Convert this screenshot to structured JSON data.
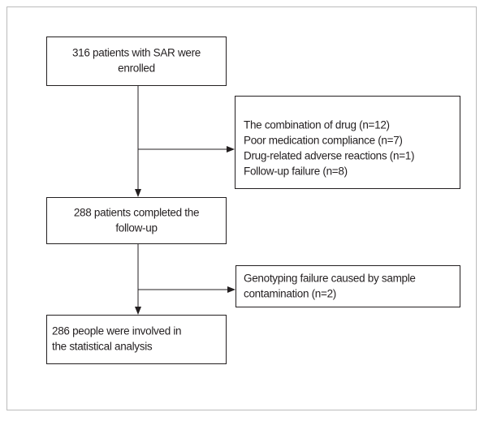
{
  "nodes": [
    {
      "lines": [
        "316 patients with  SAR were",
        "enrolled"
      ]
    },
    {
      "lines": [
        "The combination of drug (n=12)",
        "Poor medication compliance (n=7)",
        "Drug-related adverse reactions (n=1)",
        "Follow-up failure (n=8)"
      ]
    },
    {
      "lines": [
        "288 patients completed the",
        "follow-up"
      ]
    },
    {
      "lines": [
        "Genotyping failure caused by sample",
        "contamination (n=2)"
      ]
    },
    {
      "lines": [
        "286 people were involved in",
        "the statistical analysis"
      ]
    }
  ]
}
